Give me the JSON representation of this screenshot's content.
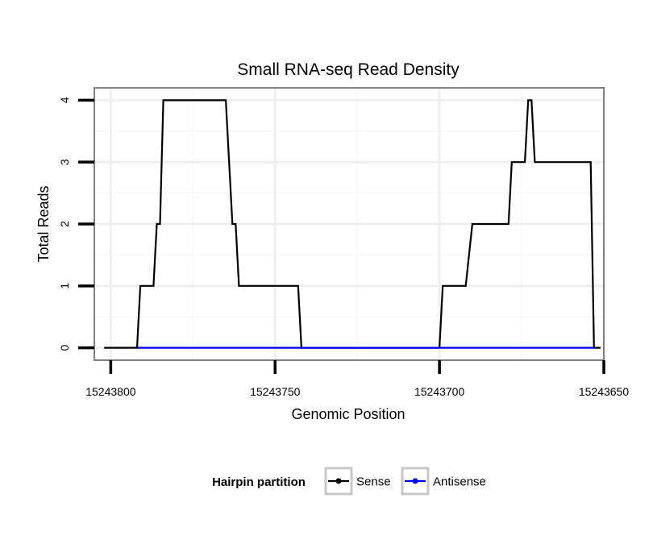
{
  "chart_data": {
    "type": "line",
    "title": "Small RNA-seq Read Density",
    "xlabel": "Genomic Position",
    "ylabel": "Total Reads",
    "x_reversed": true,
    "xlim": [
      15243805,
      15243650
    ],
    "ylim": [
      -0.2,
      4.2
    ],
    "x_ticks": [
      15243800,
      15243750,
      15243700,
      15243650
    ],
    "x_tick_labels": [
      "15243800",
      "15243750",
      "15243700",
      "15243650"
    ],
    "y_ticks": [
      0,
      1,
      2,
      3,
      4
    ],
    "y_tick_labels": [
      "0",
      "1",
      "2",
      "3",
      "4"
    ],
    "grid": true,
    "legend": {
      "title": "Hairpin partition",
      "position": "bottom",
      "entries": [
        "Sense",
        "Antisense"
      ]
    },
    "series": [
      {
        "name": "Sense",
        "color": "#000000",
        "x": [
          15243802,
          15243792,
          15243791,
          15243787,
          15243786,
          15243785,
          15243784,
          15243765,
          15243763,
          15243762,
          15243761,
          15243743,
          15243742,
          15243700,
          15243699,
          15243692,
          15243690,
          15243679,
          15243678,
          15243674,
          15243673,
          15243672,
          15243671,
          15243670,
          15243654,
          15243653,
          15243651
        ],
        "y": [
          0,
          0,
          1,
          1,
          2,
          2,
          4,
          4,
          2,
          2,
          1,
          1,
          0,
          0,
          1,
          1,
          2,
          2,
          3,
          3,
          4,
          4,
          3,
          3,
          3,
          0,
          0
        ]
      },
      {
        "name": "Antisense",
        "color": "#0000ff",
        "x": [
          15243792,
          15243653
        ],
        "y": [
          0,
          0
        ]
      }
    ]
  }
}
